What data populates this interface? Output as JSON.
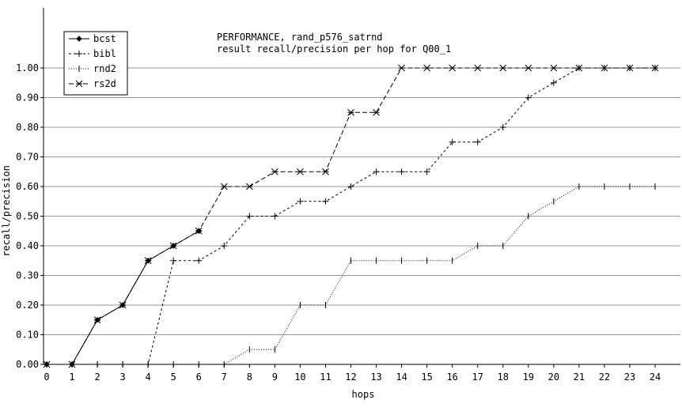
{
  "chart_data": {
    "type": "line",
    "title": [
      "PERFORMANCE, rand_p576_satrnd",
      "result recall/precision per hop for Q00_1"
    ],
    "xlabel": "hops",
    "ylabel": "recall/precision",
    "xlim": [
      0,
      24
    ],
    "ylim": [
      0,
      1.05
    ],
    "x_ticks": [
      0,
      1,
      2,
      3,
      4,
      5,
      6,
      7,
      8,
      9,
      10,
      11,
      12,
      13,
      14,
      15,
      16,
      17,
      18,
      19,
      20,
      21,
      22,
      23,
      24
    ],
    "y_ticks": [
      "0.00",
      "0.10",
      "0.20",
      "0.30",
      "0.40",
      "0.50",
      "0.60",
      "0.70",
      "0.80",
      "0.90",
      "1.00"
    ],
    "grid": "horizontal",
    "legend_position": "top-left",
    "series": [
      {
        "name": "bcst",
        "marker": "diamond",
        "dash": "solid",
        "x": [
          0,
          1,
          2,
          3,
          4,
          5,
          6
        ],
        "y": [
          0.0,
          0.0,
          0.15,
          0.2,
          0.35,
          0.4,
          0.45
        ]
      },
      {
        "name": "bibl",
        "marker": "plus",
        "dash": "short",
        "x": [
          0,
          1,
          2,
          3,
          4,
          5,
          6,
          7,
          8,
          9,
          10,
          11,
          12,
          13,
          14,
          15,
          16,
          17,
          18,
          19,
          20,
          21,
          22,
          23,
          24
        ],
        "y": [
          0.0,
          0.0,
          0.0,
          0.0,
          0.0,
          0.35,
          0.35,
          0.4,
          0.5,
          0.5,
          0.55,
          0.55,
          0.6,
          0.65,
          0.65,
          0.65,
          0.75,
          0.75,
          0.8,
          0.9,
          0.95,
          1.0,
          1.0,
          1.0,
          1.0
        ]
      },
      {
        "name": "rnd2",
        "marker": "tick",
        "dash": "dotted",
        "x": [
          0,
          1,
          2,
          3,
          4,
          5,
          6,
          7,
          8,
          9,
          10,
          11,
          12,
          13,
          14,
          15,
          16,
          17,
          18,
          19,
          20,
          21,
          22,
          23,
          24
        ],
        "y": [
          0.0,
          0.0,
          0.0,
          0.0,
          0.0,
          0.0,
          0.0,
          0.0,
          0.05,
          0.05,
          0.2,
          0.2,
          0.35,
          0.35,
          0.35,
          0.35,
          0.35,
          0.4,
          0.4,
          0.5,
          0.55,
          0.6,
          0.6,
          0.6,
          0.6
        ]
      },
      {
        "name": "rs2d",
        "marker": "star",
        "dash": "long",
        "x": [
          0,
          1,
          2,
          3,
          4,
          5,
          6,
          7,
          8,
          9,
          10,
          11,
          12,
          13,
          14,
          15,
          16,
          17,
          18,
          19,
          20,
          21,
          22,
          23,
          24
        ],
        "y": [
          0.0,
          0.0,
          0.15,
          0.2,
          0.35,
          0.4,
          0.45,
          0.6,
          0.6,
          0.65,
          0.65,
          0.65,
          0.85,
          0.85,
          1.0,
          1.0,
          1.0,
          1.0,
          1.0,
          1.0,
          1.0,
          1.0,
          1.0,
          1.0,
          1.0
        ]
      }
    ]
  }
}
